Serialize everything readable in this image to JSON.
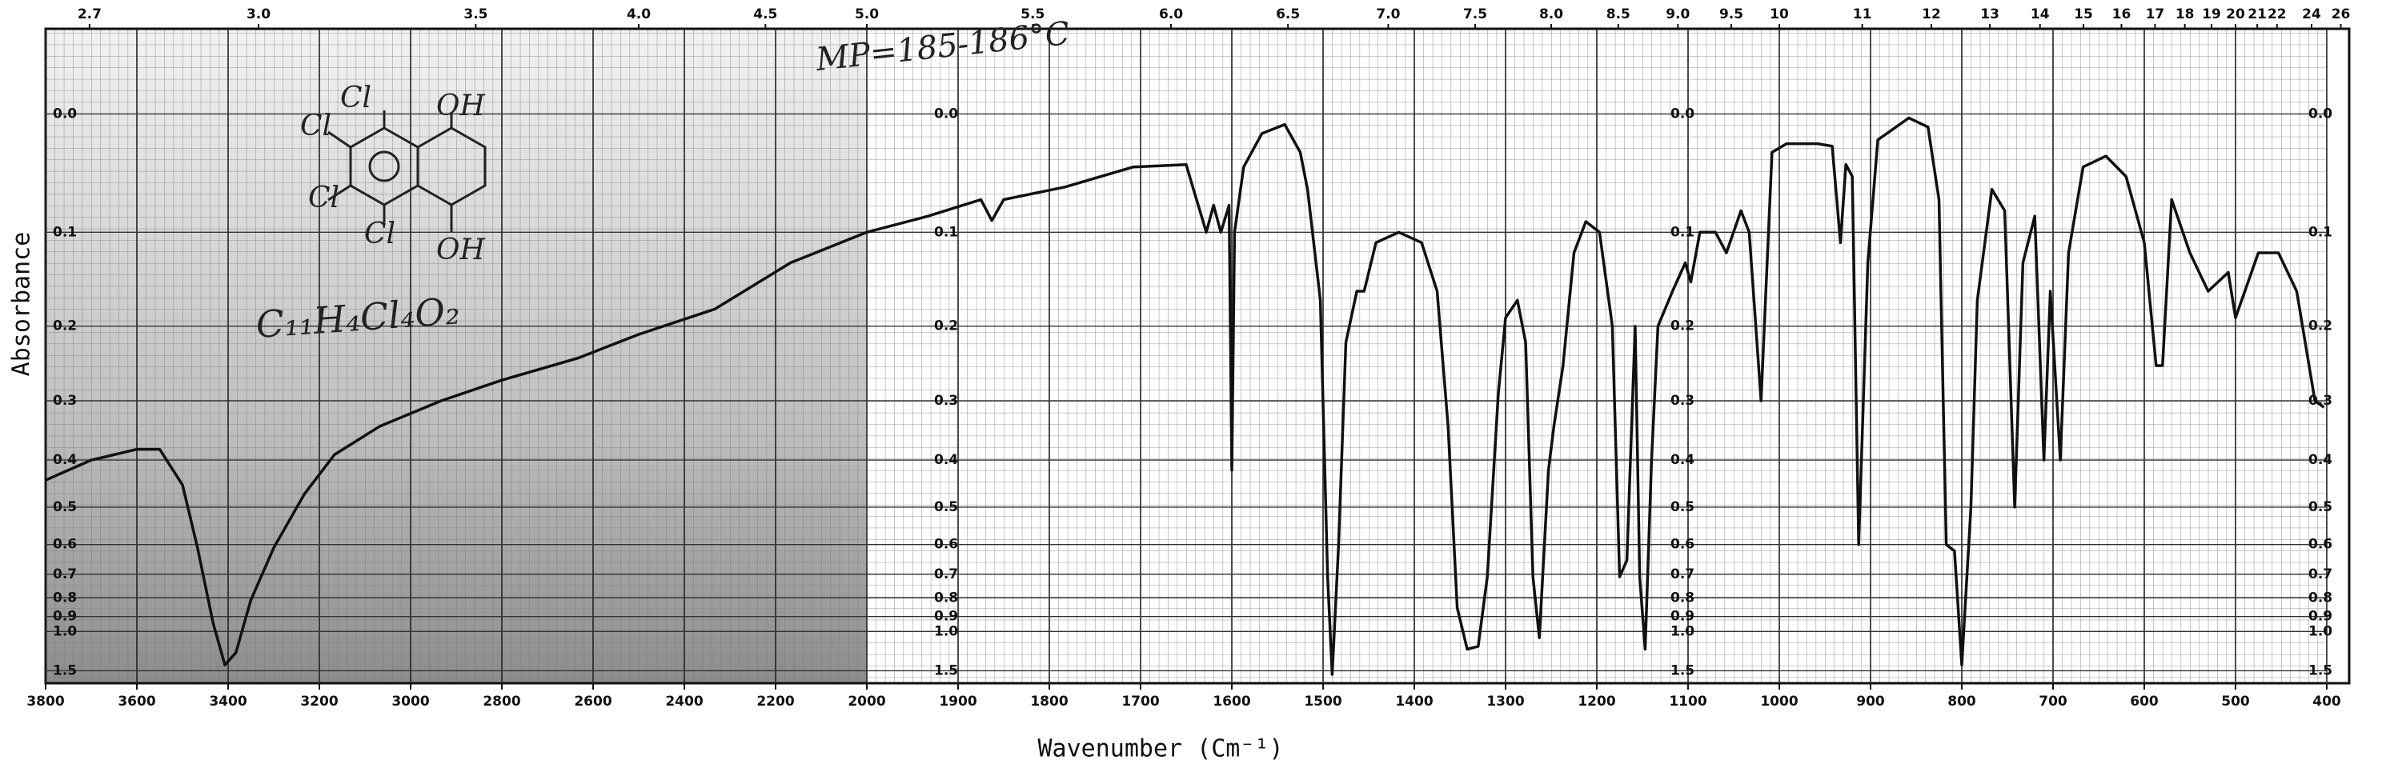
{
  "chart_data": {
    "type": "line",
    "xlabel": "Wavenumber (Cm⁻¹)",
    "ylabel": "Absorbance",
    "yscale": "absorbance",
    "grid": true,
    "color": "#111111",
    "xlim": [
      3800,
      400
    ],
    "xticks": [
      3800,
      3600,
      3400,
      3200,
      3000,
      2800,
      2600,
      2400,
      2200,
      2000,
      1900,
      1800,
      1700,
      1600,
      1500,
      1400,
      1300,
      1200,
      1100,
      1000,
      900,
      800,
      700,
      600,
      500,
      400
    ],
    "x2ticks": [
      2.7,
      {
        "value": 3,
        "label": "3.0"
      },
      3.5,
      {
        "value": 4,
        "label": "4.0"
      },
      4.5,
      {
        "value": 5,
        "label": "5.0"
      },
      5.5,
      {
        "value": 6,
        "label": "6.0"
      },
      6.5,
      {
        "value": 7,
        "label": "7.0"
      },
      7.5,
      {
        "value": 8,
        "label": "8.0"
      },
      8.5,
      {
        "value": 9,
        "label": "9.0"
      },
      9.5,
      10,
      11,
      12,
      13,
      14,
      15,
      16,
      17,
      18,
      19,
      20,
      21,
      22,
      24,
      26
    ],
    "ylim": [
      -0.06,
      2
    ],
    "yticks": [
      {
        "value": 0,
        "label": "0.0"
      },
      0.1,
      0.2,
      0.3,
      0.4,
      0.5,
      0.6,
      0.7,
      0.8,
      0.9,
      {
        "value": 1,
        "label": "1.0"
      },
      1.5
    ],
    "annotations": [
      "MP=185-186°C",
      "C₁₁H₄Cl₄O₂"
    ],
    "structure_labels": [
      "Cl",
      "OH",
      "Cl",
      "Cl",
      "Cl",
      "OH"
    ],
    "x": [
      3800,
      3700,
      3600,
      3550,
      3500,
      3467,
      3433,
      3407,
      3383,
      3350,
      3300,
      3233,
      3167,
      3067,
      2933,
      2800,
      2633,
      2500,
      2333,
      2167,
      2000,
      1933,
      1875,
      1863,
      1850,
      1783,
      1708,
      1650,
      1642,
      1628,
      1620,
      1612,
      1603,
      1600,
      1597,
      1587,
      1567,
      1542,
      1525,
      1517,
      1503,
      1495,
      1490,
      1483,
      1475,
      1463,
      1455,
      1442,
      1417,
      1392,
      1375,
      1363,
      1353,
      1342,
      1330,
      1320,
      1308,
      1300,
      1287,
      1278,
      1270,
      1263,
      1253,
      1247,
      1237,
      1225,
      1212,
      1197,
      1183,
      1175,
      1167,
      1158,
      1153,
      1147,
      1140,
      1133,
      1117,
      1103,
      1097,
      1087,
      1070,
      1058,
      1042,
      1033,
      1020,
      1008,
      992,
      958,
      942,
      933,
      927,
      920,
      913,
      903,
      892,
      858,
      837,
      825,
      817,
      808,
      800,
      790,
      783,
      767,
      753,
      742,
      733,
      720,
      710,
      703,
      692,
      683,
      667,
      642,
      620,
      600,
      587,
      580,
      570,
      550,
      530,
      508,
      500,
      475,
      453,
      433,
      413,
      403
    ],
    "values": [
      0.44,
      0.4,
      0.38,
      0.38,
      0.45,
      0.61,
      0.94,
      1.38,
      1.2,
      0.81,
      0.61,
      0.47,
      0.39,
      0.34,
      0.3,
      0.27,
      0.24,
      0.21,
      0.18,
      0.13,
      0.1,
      0.085,
      0.07,
      0.089,
      0.07,
      0.059,
      0.042,
      0.04,
      0.061,
      0.1,
      0.075,
      0.1,
      0.075,
      0.42,
      0.1,
      0.042,
      0.015,
      0.008,
      0.03,
      0.061,
      0.17,
      0.71,
      1.6,
      0.6,
      0.22,
      0.16,
      0.16,
      0.11,
      0.1,
      0.11,
      0.16,
      0.34,
      0.85,
      1.16,
      1.13,
      0.71,
      0.29,
      0.19,
      0.17,
      0.22,
      0.71,
      1.05,
      0.42,
      0.34,
      0.25,
      0.12,
      0.09,
      0.1,
      0.2,
      0.71,
      0.65,
      0.2,
      0.71,
      1.16,
      0.4,
      0.2,
      0.16,
      0.13,
      0.15,
      0.1,
      0.1,
      0.12,
      0.08,
      0.1,
      0.3,
      0.03,
      0.023,
      0.023,
      0.025,
      0.11,
      0.04,
      0.05,
      0.6,
      0.13,
      0.02,
      0.003,
      0.01,
      0.07,
      0.6,
      0.62,
      1.38,
      0.5,
      0.17,
      0.061,
      0.08,
      0.5,
      0.13,
      0.085,
      0.4,
      0.16,
      0.4,
      0.12,
      0.042,
      0.033,
      0.05,
      0.11,
      0.25,
      0.25,
      0.07,
      0.12,
      0.16,
      0.14,
      0.19,
      0.12,
      0.12,
      0.16,
      0.3,
      0.31
    ]
  }
}
